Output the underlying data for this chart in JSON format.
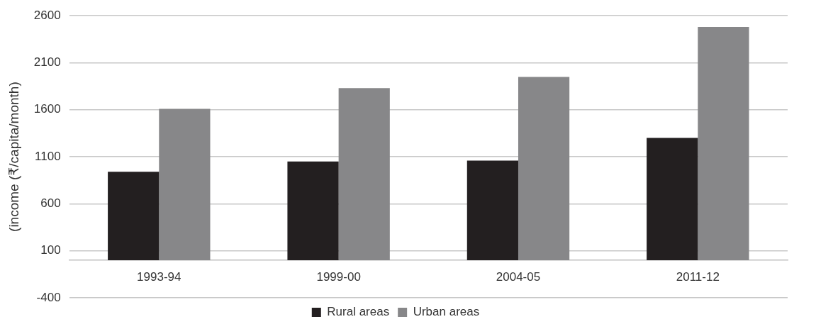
{
  "chart_data": {
    "type": "bar",
    "ylabel": "(income (₹/capita/month)",
    "categories": [
      "1993-94",
      "1999-00",
      "2004-05",
      "2011-12"
    ],
    "series": [
      {
        "name": "Rural areas",
        "color": "#231f20",
        "values": [
          940,
          1050,
          1060,
          1300
        ]
      },
      {
        "name": "Urban areas",
        "color": "#878789",
        "values": [
          1610,
          1830,
          1950,
          2480
        ]
      }
    ],
    "ylim": [
      -400,
      2600
    ],
    "yticks": [
      -400,
      100,
      600,
      1100,
      1600,
      2100,
      2600
    ],
    "grid": "y",
    "legend": "bottom"
  }
}
